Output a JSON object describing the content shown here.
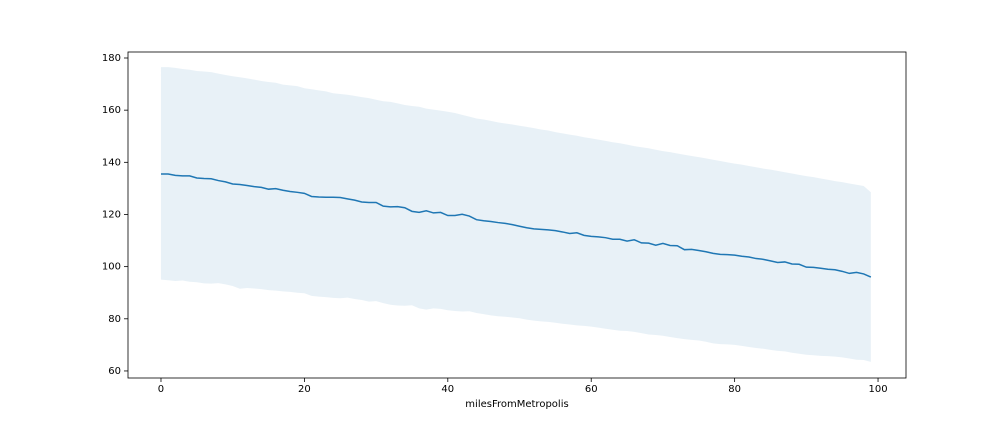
{
  "chart_data": {
    "type": "line",
    "x_label": "milesFromMetropolis",
    "x": [
      0,
      1,
      2,
      3,
      4,
      5,
      6,
      7,
      8,
      9,
      10,
      11,
      12,
      13,
      14,
      15,
      16,
      17,
      18,
      19,
      20,
      21,
      22,
      23,
      24,
      25,
      26,
      27,
      28,
      29,
      30,
      31,
      32,
      33,
      34,
      35,
      36,
      37,
      38,
      39,
      40,
      41,
      42,
      43,
      44,
      45,
      46,
      47,
      48,
      49,
      50,
      51,
      52,
      53,
      54,
      55,
      56,
      57,
      58,
      59,
      60,
      61,
      62,
      63,
      64,
      65,
      66,
      67,
      68,
      69,
      70,
      71,
      72,
      73,
      74,
      75,
      76,
      77,
      78,
      79,
      80,
      81,
      82,
      83,
      84,
      85,
      86,
      87,
      88,
      89,
      90,
      91,
      92,
      93,
      94,
      95,
      96,
      97,
      98,
      99
    ],
    "series": [
      {
        "color": "#1f77b4",
        "values": [
          135.5,
          135.5,
          135,
          134.8,
          134.8,
          134,
          133.8,
          133.7,
          133,
          132.5,
          131.7,
          131.5,
          131.1,
          130.7,
          130.4,
          129.7,
          129.9,
          129.3,
          128.8,
          128.5,
          128.1,
          126.9,
          126.7,
          126.6,
          126.6,
          126.5,
          126,
          125.5,
          124.8,
          124.6,
          124.6,
          123.2,
          122.9,
          123,
          122.6,
          121.2,
          120.8,
          121.4,
          120.6,
          120.8,
          119.6,
          119.6,
          120.1,
          119.4,
          118,
          117.6,
          117.3,
          116.9,
          116.6,
          116.1,
          115.5,
          114.9,
          114.5,
          114.3,
          114.1,
          113.8,
          113.3,
          112.7,
          113,
          112,
          111.6,
          111.4,
          111.1,
          110.5,
          110.5,
          109.8,
          110.3,
          109.1,
          109,
          108.2,
          108.9,
          108.1,
          108,
          106.5,
          106.6,
          106.2,
          105.7,
          105.1,
          104.7,
          104.6,
          104.4,
          104,
          103.7,
          103.1,
          102.8,
          102.2,
          101.6,
          101.8,
          101,
          100.9,
          99.8,
          99.7,
          99.4,
          99,
          98.8,
          98.2,
          97.4,
          97.8,
          97.2,
          96
        ]
      }
    ],
    "band": {
      "color": "#1f77b4",
      "opacity": 0.1,
      "lower": [
        95,
        94.8,
        94.5,
        94.7,
        94.2,
        94,
        93.6,
        93.5,
        93.7,
        93.2,
        92.6,
        91.5,
        91.8,
        91.6,
        91.4,
        91,
        90.8,
        90.5,
        90.3,
        90,
        89.8,
        88.8,
        88.5,
        88.3,
        88,
        87.9,
        88.1,
        87.6,
        87.2,
        86.6,
        86.8,
        86,
        85.4,
        85.1,
        85,
        85.2,
        84,
        83.5,
        84,
        83.8,
        83.3,
        83,
        82.8,
        82.9,
        82.2,
        81.8,
        81.3,
        81,
        80.8,
        80.5,
        80.2,
        79.7,
        79.3,
        79,
        78.8,
        78.5,
        78.1,
        77.8,
        77.5,
        77.3,
        77,
        76.6,
        76.2,
        75.8,
        75.4,
        75.3,
        75,
        74.5,
        74,
        73.8,
        73.5,
        73,
        72.6,
        72.2,
        71.9,
        71.7,
        71.2,
        70.6,
        70.3,
        70.2,
        70,
        69.6,
        69.2,
        68.8,
        68.5,
        68.1,
        67.7,
        67.5,
        67,
        66.6,
        66.2,
        66,
        65.8,
        65.7,
        65.5,
        65.2,
        64.8,
        64.3,
        64.2,
        63.5
      ],
      "upper": [
        176.5,
        176.5,
        176.2,
        175.8,
        175.5,
        175,
        174.8,
        174.6,
        174,
        173.5,
        173,
        172.6,
        172.2,
        171.7,
        171.2,
        170.8,
        170.5,
        169.8,
        169.5,
        169.2,
        168.4,
        168,
        167.6,
        167.2,
        166.5,
        166.2,
        165.9,
        165.5,
        165,
        164.6,
        164,
        163.4,
        163.2,
        162.6,
        162,
        161.6,
        161.3,
        160.6,
        160.2,
        159.8,
        159.4,
        158.9,
        158.2,
        157.5,
        156.8,
        156.4,
        155.9,
        155.3,
        154.9,
        154.5,
        154,
        153.6,
        153.1,
        152.6,
        152.2,
        151.6,
        151.1,
        150.6,
        150.2,
        149.6,
        149.2,
        148.7,
        148.2,
        147.7,
        147.3,
        146.8,
        146.2,
        145.8,
        145.4,
        144.8,
        144.3,
        143.9,
        143.4,
        142.9,
        142.4,
        142,
        141.5,
        141,
        140.5,
        140,
        139.5,
        139.1,
        138.6,
        138.1,
        137.6,
        137.2,
        136.7,
        136.2,
        135.7,
        135.2,
        134.7,
        134.3,
        133.8,
        133.3,
        132.8,
        132.4,
        131.9,
        131.4,
        130.9,
        128.5
      ]
    },
    "xlim": [
      -4.6,
      103.9
    ],
    "ylim": [
      57.3,
      182.3
    ],
    "xticks": [
      0,
      20,
      40,
      60,
      80,
      100
    ],
    "yticks": [
      60,
      80,
      100,
      120,
      140,
      160,
      180
    ]
  }
}
